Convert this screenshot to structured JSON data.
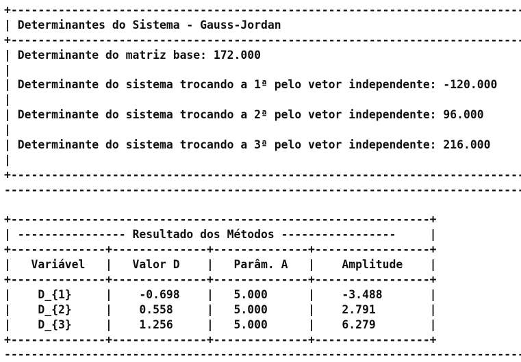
{
  "console": {
    "box1": {
      "border": "+----------------------------------------------------------------------------+",
      "title": "| Determinantes do Sistema - Gauss-Jordan                                    |",
      "base_det": "| Determinante do matriz base: 172.000                                       |",
      "blank": "|                                                                            |",
      "det_1": "| Determinante do sistema trocando a 1ª pelo vetor independente: -120.000    |",
      "det_2": "| Determinante do sistema trocando a 2ª pelo vetor independente: 96.000      |",
      "det_3": "| Determinante do sistema trocando a 3ª pelo vetor independente: 216.000     |"
    },
    "separator": "------------------------------------------------------------------------------",
    "box2": {
      "top_border": "+--------------------------------------------------------------+",
      "title": "| ---------------- Resultado dos Métodos -----------------     |",
      "col_border": "+--------------+--------------+--------------+-----------------+",
      "header": "|   Variável   |   Valor D    |   Parâm. A   |    Amplitude    |",
      "row_1": "|    D_{1}     |    -0.698    |   5.000      |    -3.488       |",
      "row_2": "|    D_{2}     |    0.558     |   5.000      |    2.791        |",
      "row_3": "|    D_{3}     |    1.256     |   5.000      |    6.279        |"
    },
    "results": {
      "columns": [
        "Variável",
        "Valor D",
        "Parâm. A",
        "Amplitude"
      ],
      "rows": [
        [
          "D_{1}",
          "-0.698",
          "5.000",
          "-3.488"
        ],
        [
          "D_{2}",
          "0.558",
          "5.000",
          "2.791"
        ],
        [
          "D_{3}",
          "1.256",
          "5.000",
          "6.279"
        ]
      ]
    },
    "text_color": "#101010",
    "background_color": "#ffffff"
  }
}
